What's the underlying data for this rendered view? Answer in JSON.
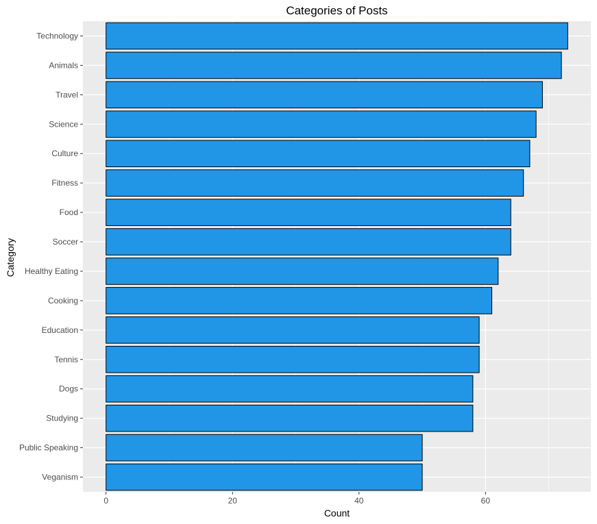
{
  "chart_data": {
    "type": "bar",
    "orientation": "horizontal",
    "title": "Categories of Posts",
    "xlabel": "Count",
    "ylabel": "Category",
    "categories": [
      "Technology",
      "Animals",
      "Travel",
      "Science",
      "Culture",
      "Fitness",
      "Food",
      "Soccer",
      "Healthy Eating",
      "Cooking",
      "Education",
      "Tennis",
      "Dogs",
      "Studying",
      "Public Speaking",
      "Veganism"
    ],
    "values": [
      73,
      72,
      69,
      68,
      67,
      66,
      64,
      64,
      62,
      61,
      59,
      59,
      58,
      58,
      50,
      50
    ],
    "xlim": [
      -3.65,
      76.65
    ],
    "x_ticks": [
      0,
      20,
      40,
      60
    ],
    "grid": true,
    "colors": {
      "bar_fill": "#2196E6",
      "bar_stroke": "#000000",
      "panel_background": "#EBEBEB",
      "grid_major": "#FFFFFF",
      "tick_label": "#4D4D4D"
    }
  }
}
